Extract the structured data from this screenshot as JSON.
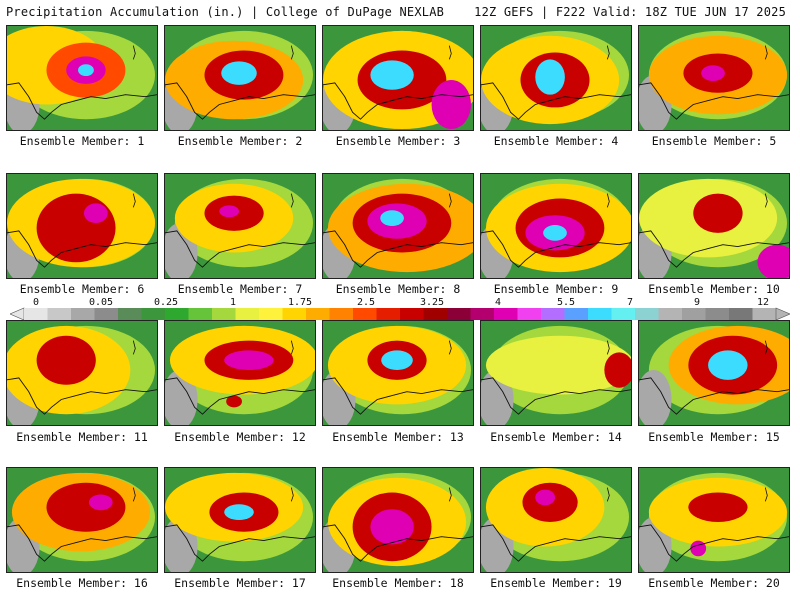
{
  "header": {
    "left_title": "Precipitation Accumulation (in.) | College of DuPage NEXLAB",
    "right_title": "12Z GEFS | F222 Valid: 18Z TUE JUN 17 2025"
  },
  "members": [
    {
      "label": "Ensemble Member: 1"
    },
    {
      "label": "Ensemble Member: 2"
    },
    {
      "label": "Ensemble Member: 3"
    },
    {
      "label": "Ensemble Member: 4"
    },
    {
      "label": "Ensemble Member: 5"
    },
    {
      "label": "Ensemble Member: 6"
    },
    {
      "label": "Ensemble Member: 7"
    },
    {
      "label": "Ensemble Member: 8"
    },
    {
      "label": "Ensemble Member: 9"
    },
    {
      "label": "Ensemble Member: 10"
    },
    {
      "label": "Ensemble Member: 11"
    },
    {
      "label": "Ensemble Member: 12"
    },
    {
      "label": "Ensemble Member: 13"
    },
    {
      "label": "Ensemble Member: 14"
    },
    {
      "label": "Ensemble Member: 15"
    },
    {
      "label": "Ensemble Member: 16"
    },
    {
      "label": "Ensemble Member: 17"
    },
    {
      "label": "Ensemble Member: 18"
    },
    {
      "label": "Ensemble Member: 19"
    },
    {
      "label": "Ensemble Member: 20"
    }
  ],
  "colorbar": {
    "tick_labels": [
      "0",
      "0.05",
      "0.25",
      "1",
      "1.75",
      "2.5",
      "3.25",
      "4",
      "5.5",
      "7",
      "9",
      "12"
    ],
    "colors": [
      "#e6e6e6",
      "#c8c8c8",
      "#a8a8a8",
      "#8c8c8c",
      "#5a8c5a",
      "#3c963c",
      "#2ea82e",
      "#66c43a",
      "#a4d83c",
      "#e8f040",
      "#fff23c",
      "#ffd400",
      "#ffac00",
      "#ff8200",
      "#ff4a00",
      "#e61e00",
      "#c80000",
      "#a00000",
      "#8c0038",
      "#b4006e",
      "#e000b4",
      "#f040f0",
      "#b46eff",
      "#5aa0ff",
      "#3cdcff",
      "#64f0f0",
      "#8cd2d2",
      "#b4b4b4",
      "#a0a0a0",
      "#8c8c8c",
      "#787878",
      "#b4b4b4"
    ]
  }
}
